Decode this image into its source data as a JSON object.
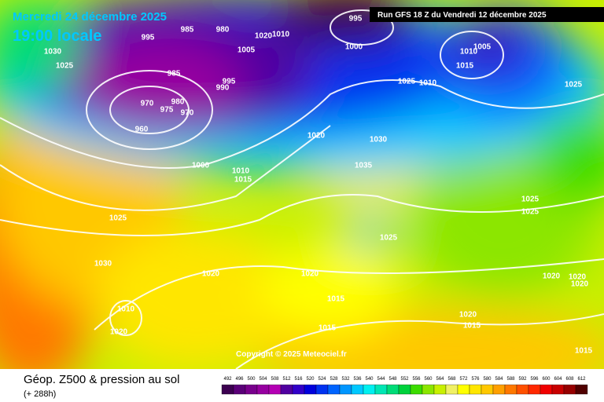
{
  "header": {
    "date": "Mercredi 24 décembre 2025",
    "time": "19:00 locale",
    "run": "Run GFS 18 Z du Vendredi 12 décembre 2025"
  },
  "copyright": "Copyright © 2025 Meteociel.fr",
  "footer": {
    "title": "Géop. Z500 & pression au sol",
    "lead": "(+ 288h)"
  },
  "isobar_labels": [
    995,
    985,
    980,
    1005,
    1020,
    1010,
    995,
    1000,
    1010,
    1005,
    1015,
    1030,
    1025,
    985,
    995,
    990,
    980,
    975,
    970,
    970,
    960,
    1000,
    1010,
    1015,
    1020,
    1030,
    1035,
    1025,
    1025,
    1025,
    1025,
    1030,
    1020,
    1020,
    1010,
    1015,
    1020,
    1015,
    1020,
    1015,
    1020,
    1020,
    1020,
    1025,
    1025,
    1010,
    1015
  ],
  "scale": {
    "labels": [
      492,
      496,
      500,
      504,
      508,
      512,
      516,
      520,
      524,
      528,
      532,
      536,
      540,
      544,
      548,
      552,
      556,
      560,
      564,
      568,
      572,
      576,
      580,
      584,
      588,
      592,
      596,
      600,
      604,
      608,
      612
    ],
    "colors": [
      "#3c0050",
      "#5a0078",
      "#78008c",
      "#9600a0",
      "#b400b4",
      "#5000a0",
      "#3200c8",
      "#0000dc",
      "#0032f0",
      "#0064ff",
      "#0096ff",
      "#00c8ff",
      "#00f0f0",
      "#00e6b4",
      "#00dc78",
      "#00d23c",
      "#3cdc00",
      "#8ce600",
      "#c8f000",
      "#f0f064",
      "#ffff00",
      "#ffe600",
      "#ffc800",
      "#ffa000",
      "#ff7800",
      "#ff5000",
      "#ff2800",
      "#f00000",
      "#c80000",
      "#960000",
      "#500000"
    ]
  }
}
